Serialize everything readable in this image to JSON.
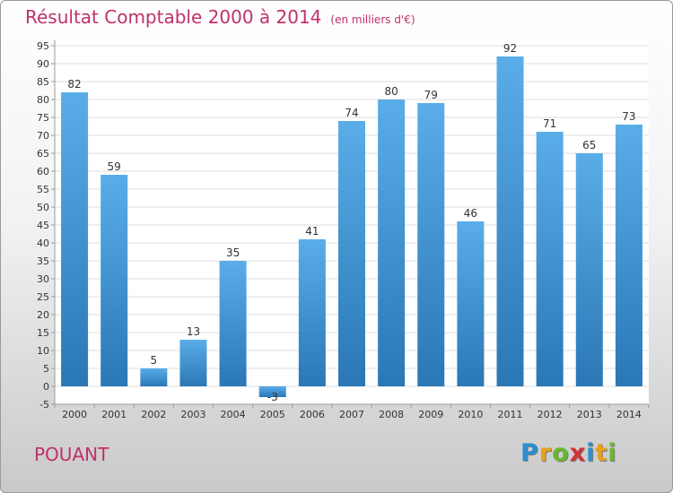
{
  "header": {
    "title": "Résultat Comptable 2000 à 2014",
    "subtitle": "(en milliers d'€)"
  },
  "footer": {
    "commune": "POUANT",
    "logo": {
      "letters": [
        "P",
        "r",
        "o",
        "x",
        "i",
        "t",
        "i"
      ],
      "colors": [
        "#2b8fd0",
        "#e9a11a",
        "#69b82f",
        "#d03335",
        "#2b8fd0",
        "#e9a11a",
        "#69b82f"
      ]
    }
  },
  "chart_data": {
    "type": "bar",
    "categories": [
      "2000",
      "2001",
      "2002",
      "2003",
      "2004",
      "2005",
      "2006",
      "2007",
      "2008",
      "2009",
      "2010",
      "2011",
      "2012",
      "2013",
      "2014"
    ],
    "values": [
      82,
      59,
      5,
      13,
      35,
      -3,
      41,
      74,
      80,
      79,
      46,
      92,
      71,
      65,
      73
    ],
    "value_labels": [
      "82",
      "59",
      "5",
      "13",
      "35",
      "-3",
      "41",
      "74",
      "80",
      "79",
      "46",
      "92",
      "71",
      "65",
      "73"
    ],
    "ylim": [
      -5,
      95
    ],
    "yticks": [
      -5,
      0,
      5,
      10,
      15,
      20,
      25,
      30,
      35,
      40,
      45,
      50,
      55,
      60,
      65,
      70,
      75,
      80,
      85,
      90,
      95
    ],
    "grid": true,
    "colors": {
      "bar_top": "#5aade9",
      "bar_bottom": "#2a77b6",
      "grid": "#dcdcdc"
    }
  }
}
